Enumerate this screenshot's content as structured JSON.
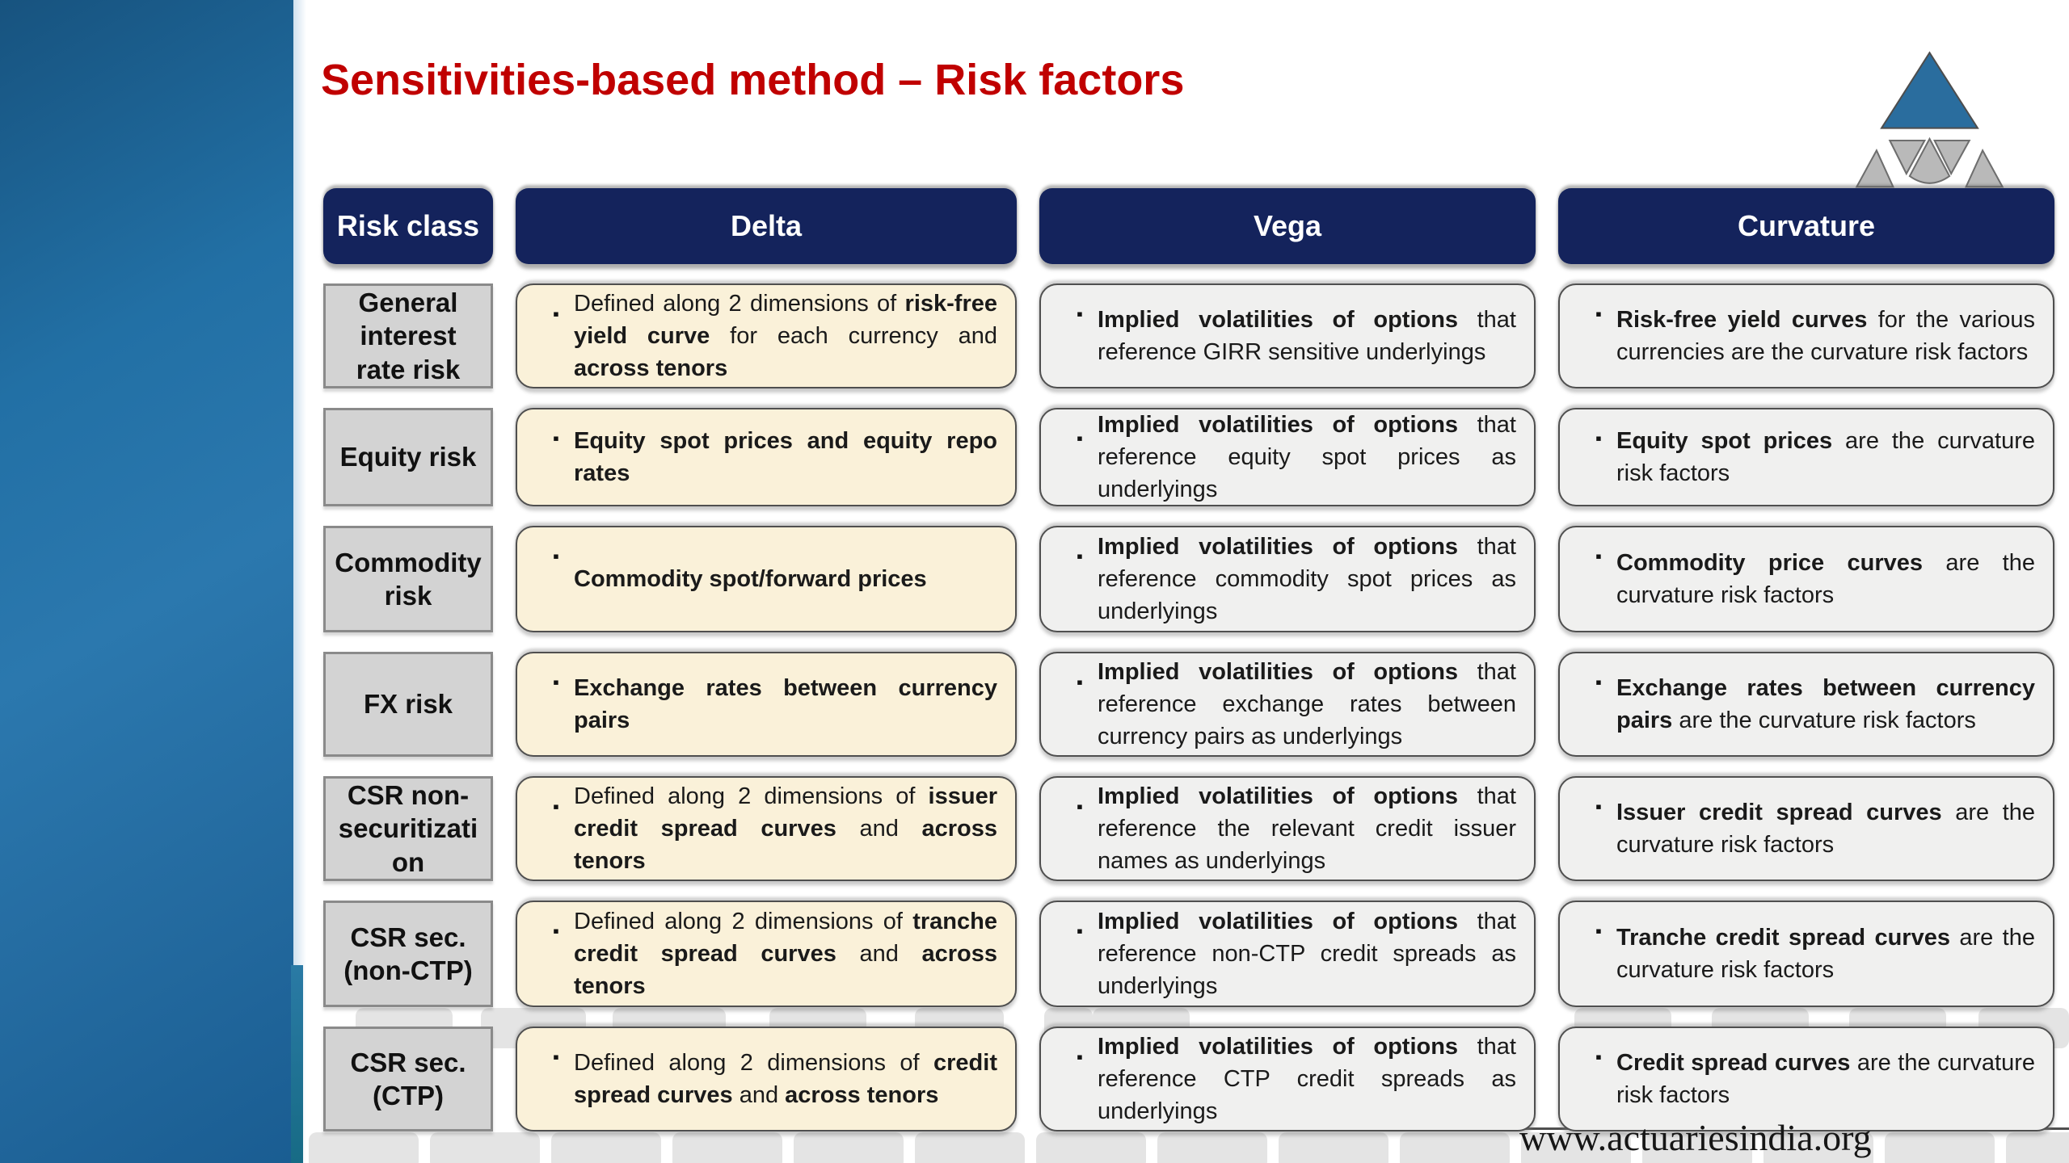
{
  "title": "Sensitivities-based method – Risk factors",
  "watermark_url": "www.actuariesindia.org",
  "colors": {
    "title_red": "#c00000",
    "header_navy": "#14235c",
    "risk_class_gray": "#d3d3d3",
    "delta_cream": "#faf1d9",
    "vega_curvature_gray": "#f0f0ef",
    "sidebar_blue": "#2270a5",
    "logo_blue": "#2a6d9e",
    "logo_gray": "#b9b9b9"
  },
  "table": {
    "headers": [
      "Risk class",
      "Delta",
      "Vega",
      "Curvature"
    ],
    "rows": [
      {
        "risk_class": "General interest rate risk",
        "delta": [
          {
            "t": "Defined along 2 dimensions of ",
            "b": false
          },
          {
            "t": "risk-free yield curve",
            "b": true
          },
          {
            "t": " for each currency and ",
            "b": false
          },
          {
            "t": "across tenors",
            "b": true
          }
        ],
        "vega": [
          {
            "t": "Implied volatilities of options",
            "b": true
          },
          {
            "t": " that reference GIRR sensitive underlyings",
            "b": false
          }
        ],
        "curvature": [
          {
            "t": "Risk-free yield curves",
            "b": true
          },
          {
            "t": " for the various currencies are the curvature risk factors",
            "b": false
          }
        ]
      },
      {
        "risk_class": "Equity risk",
        "delta": [
          {
            "t": "Equity spot prices and equity repo rates",
            "b": true
          }
        ],
        "vega": [
          {
            "t": "Implied volatilities of options",
            "b": true
          },
          {
            "t": " that reference equity spot prices as underlyings",
            "b": false
          }
        ],
        "curvature": [
          {
            "t": "Equity spot prices",
            "b": true
          },
          {
            "t": " are the curvature risk factors",
            "b": false
          }
        ]
      },
      {
        "risk_class": "Commodity risk",
        "delta": [
          {
            "t": "Commodity spot/forward prices",
            "b": true
          }
        ],
        "vega": [
          {
            "t": "Implied volatilities of options",
            "b": true
          },
          {
            "t": " that reference commodity spot prices as underlyings",
            "b": false
          }
        ],
        "curvature": [
          {
            "t": "Commodity price curves",
            "b": true
          },
          {
            "t": " are the curvature risk factors",
            "b": false
          }
        ]
      },
      {
        "risk_class": "FX risk",
        "delta": [
          {
            "t": "Exchange rates between currency pairs",
            "b": true
          }
        ],
        "vega": [
          {
            "t": "Implied volatilities of options",
            "b": true
          },
          {
            "t": " that reference exchange rates between currency pairs as underlyings",
            "b": false
          }
        ],
        "curvature": [
          {
            "t": "Exchange rates between currency pairs",
            "b": true
          },
          {
            "t": " are the curvature risk factors",
            "b": false
          }
        ]
      },
      {
        "risk_class": "CSR non-securitization",
        "delta": [
          {
            "t": "Defined along 2 dimensions of ",
            "b": false
          },
          {
            "t": "issuer credit spread curves",
            "b": true
          },
          {
            "t": " and ",
            "b": false
          },
          {
            "t": "across tenors",
            "b": true
          }
        ],
        "vega": [
          {
            "t": "Implied volatilities of options",
            "b": true
          },
          {
            "t": " that reference the relevant credit issuer names as underlyings",
            "b": false
          }
        ],
        "curvature": [
          {
            "t": "Issuer credit spread curves",
            "b": true
          },
          {
            "t": " are the curvature risk factors",
            "b": false
          }
        ]
      },
      {
        "risk_class": "CSR sec. (non-CTP)",
        "delta": [
          {
            "t": "Defined along 2 dimensions of ",
            "b": false
          },
          {
            "t": "tranche credit spread curves",
            "b": true
          },
          {
            "t": " and ",
            "b": false
          },
          {
            "t": "across tenors",
            "b": true
          }
        ],
        "vega": [
          {
            "t": "Implied volatilities of options",
            "b": true
          },
          {
            "t": " that reference non-CTP credit spreads as underlyings",
            "b": false
          }
        ],
        "curvature": [
          {
            "t": "Tranche credit spread curves",
            "b": true
          },
          {
            "t": " are the curvature risk factors",
            "b": false
          }
        ]
      },
      {
        "risk_class": "CSR sec. (CTP)",
        "delta": [
          {
            "t": "Defined along 2 dimensions of ",
            "b": false
          },
          {
            "t": "credit spread curves",
            "b": true
          },
          {
            "t": " and ",
            "b": false
          },
          {
            "t": "across tenors",
            "b": true
          }
        ],
        "vega": [
          {
            "t": "Implied volatilities of options",
            "b": true
          },
          {
            "t": " that reference CTP credit spreads as underlyings",
            "b": false
          }
        ],
        "curvature": [
          {
            "t": "Credit spread curves",
            "b": true
          },
          {
            "t": " are the curvature risk factors",
            "b": false
          }
        ]
      }
    ]
  }
}
